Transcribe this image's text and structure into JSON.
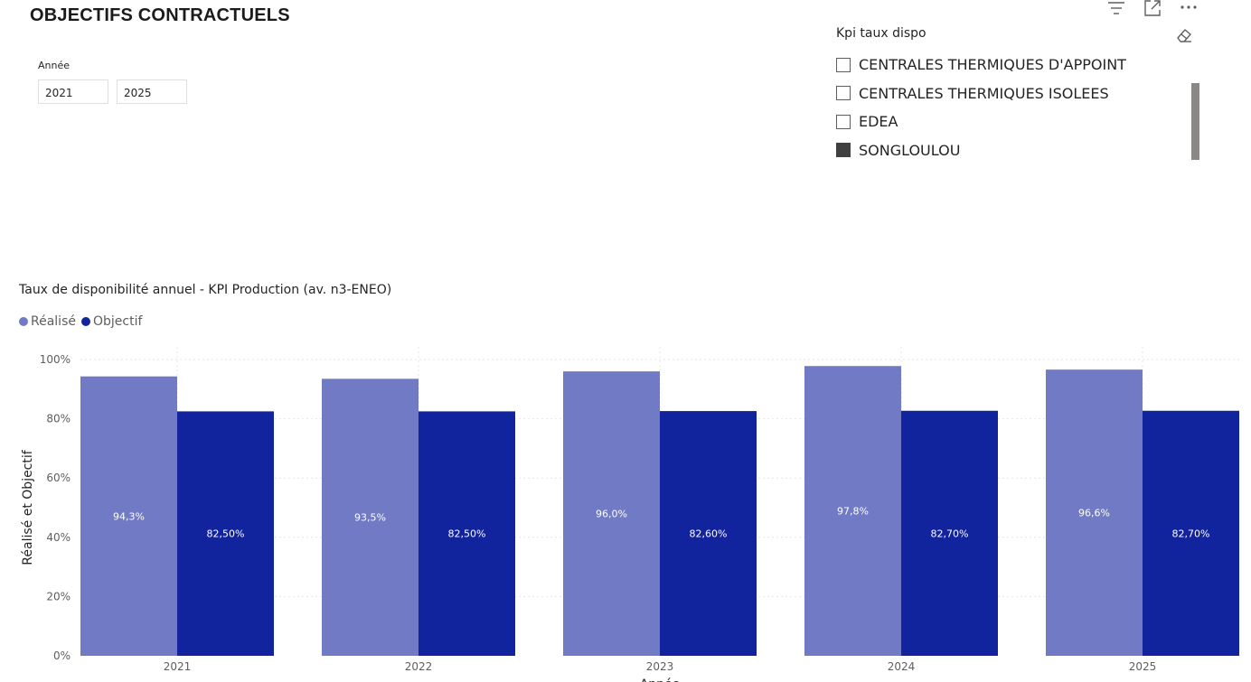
{
  "page": {
    "title": "OBJECTIFS CONTRACTUELS"
  },
  "year_slicer": {
    "label": "Année",
    "from": "2021",
    "to": "2025"
  },
  "kpi_slicer": {
    "title": "Kpi taux dispo",
    "items": [
      {
        "label": "CENTRALES THERMIQUES D'APPOINT",
        "checked": false
      },
      {
        "label": "CENTRALES THERMIQUES ISOLEES",
        "checked": false
      },
      {
        "label": "EDEA",
        "checked": false
      },
      {
        "label": "SONGLOULOU",
        "checked": true
      }
    ]
  },
  "visual_header_icons": [
    "filter-icon",
    "focus-mode-icon",
    "more-options-icon"
  ],
  "chart_data": {
    "type": "bar",
    "title": "Taux de disponibilité annuel - KPI Production (av. n3-ENEO)",
    "xlabel": "Année",
    "ylabel": "Réalisé et Objectif",
    "categories": [
      "2021",
      "2022",
      "2023",
      "2024",
      "2025"
    ],
    "series": [
      {
        "name": "Réalisé",
        "color": "#717bc5",
        "values": [
          94.3,
          93.5,
          96.0,
          97.8,
          96.6
        ],
        "labels": [
          "94,3%",
          "93,5%",
          "96,0%",
          "97,8%",
          "96,6%"
        ]
      },
      {
        "name": "Objectif",
        "color": "#12239e",
        "values": [
          82.5,
          82.5,
          82.6,
          82.7,
          82.7
        ],
        "labels": [
          "82,50%",
          "82,50%",
          "82,60%",
          "82,70%",
          "82,70%"
        ]
      }
    ],
    "yticks": [
      "0%",
      "20%",
      "40%",
      "60%",
      "80%",
      "100%"
    ],
    "ylim": [
      0,
      100
    ],
    "grid": true,
    "legend_position": "top-left"
  }
}
